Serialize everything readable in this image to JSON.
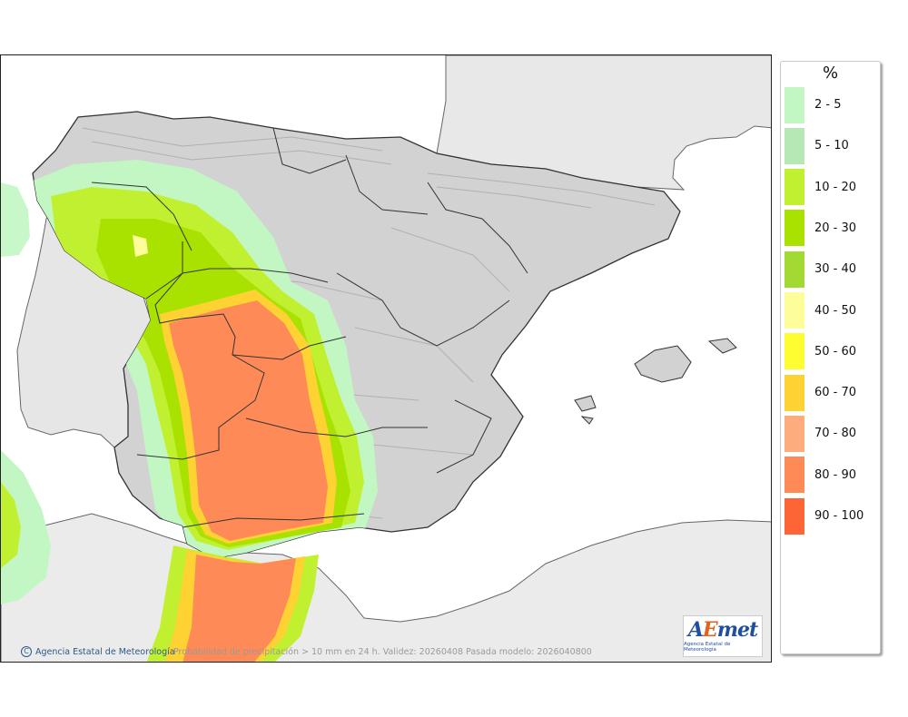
{
  "map": {
    "credit_text": "Agencia Estatal de Meteorología",
    "caption": "Probabilidad de precipitación > 10 mm en 24 h. Validez: 20260408 Pasada modelo: 2026040800",
    "logo": {
      "main": "AEmet",
      "subtitle": "Agencia Estatal de Meteorología"
    }
  },
  "legend": {
    "unit": "%",
    "bins": [
      {
        "label": "2 - 5",
        "color": "#c2f7c4"
      },
      {
        "label": "5 - 10",
        "color": "#b5e8b5"
      },
      {
        "label": "10 - 20",
        "color": "#c1f031"
      },
      {
        "label": "20 - 30",
        "color": "#a9e200"
      },
      {
        "label": "30 - 40",
        "color": "#a2d933"
      },
      {
        "label": "40 - 50",
        "color": "#fdfd99"
      },
      {
        "label": "50 - 60",
        "color": "#fdfd32"
      },
      {
        "label": "60 - 70",
        "color": "#fdd232"
      },
      {
        "label": "70 - 80",
        "color": "#fdad7d"
      },
      {
        "label": "80 - 90",
        "color": "#fd8a57"
      },
      {
        "label": "90 - 100",
        "color": "#fd6436"
      }
    ]
  }
}
